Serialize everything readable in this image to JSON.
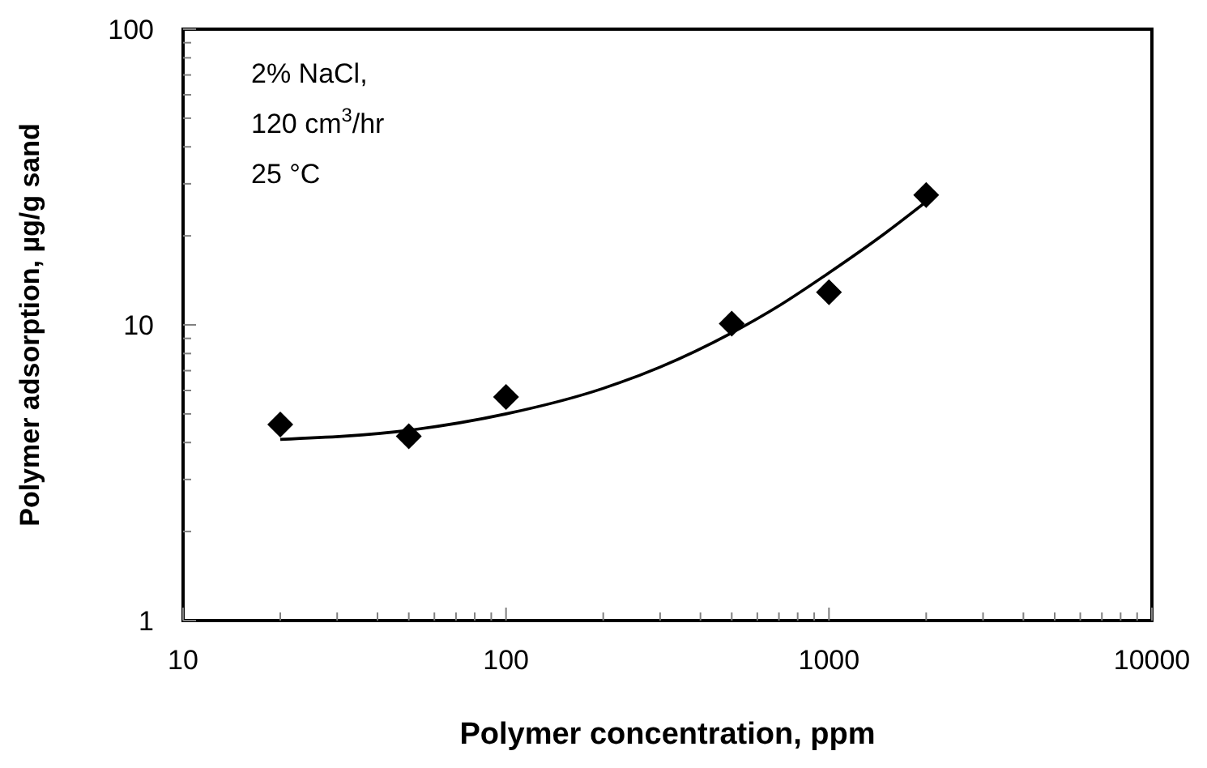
{
  "chart_data": {
    "type": "scatter",
    "xlabel": "Polymer concentration, ppm",
    "ylabel": "Polymer adsorption, µg/g sand",
    "log": "xy",
    "grid": false,
    "xlim": [
      10,
      10000
    ],
    "ylim": [
      1,
      100
    ],
    "xticks": [
      10,
      {
        "value": 20,
        "label": null
      },
      {
        "value": 30,
        "label": null
      },
      {
        "value": 40,
        "label": null
      },
      {
        "value": 50,
        "label": null
      },
      {
        "value": 60,
        "label": null
      },
      {
        "value": 70,
        "label": null
      },
      {
        "value": 80,
        "label": null
      },
      {
        "value": 90,
        "label": null
      },
      100,
      {
        "value": 200,
        "label": null
      },
      {
        "value": 300,
        "label": null
      },
      {
        "value": 400,
        "label": null
      },
      {
        "value": 500,
        "label": null
      },
      {
        "value": 600,
        "label": null
      },
      {
        "value": 700,
        "label": null
      },
      {
        "value": 800,
        "label": null
      },
      {
        "value": 900,
        "label": null
      },
      1000,
      {
        "value": 2000,
        "label": null
      },
      {
        "value": 3000,
        "label": null
      },
      {
        "value": 4000,
        "label": null
      },
      {
        "value": 5000,
        "label": null
      },
      {
        "value": 6000,
        "label": null
      },
      {
        "value": 7000,
        "label": null
      },
      {
        "value": 8000,
        "label": null
      },
      {
        "value": 9000,
        "label": null
      },
      10000
    ],
    "yticks": [
      1,
      {
        "value": 2,
        "label": null
      },
      {
        "value": 3,
        "label": null
      },
      {
        "value": 4,
        "label": null
      },
      {
        "value": 5,
        "label": null
      },
      {
        "value": 6,
        "label": null
      },
      {
        "value": 7,
        "label": null
      },
      {
        "value": 8,
        "label": null
      },
      {
        "value": 9,
        "label": null
      },
      10,
      {
        "value": 20,
        "label": null
      },
      {
        "value": 30,
        "label": null
      },
      {
        "value": 40,
        "label": null
      },
      {
        "value": 50,
        "label": null
      },
      {
        "value": 60,
        "label": null
      },
      {
        "value": 70,
        "label": null
      },
      {
        "value": 80,
        "label": null
      },
      {
        "value": 90,
        "label": null
      },
      100
    ],
    "annotations": [
      "2% NaCl,",
      "120 cm$^{3}$/hr",
      "25 °C"
    ],
    "series": [
      {
        "color": "#000000",
        "marker": "diamond",
        "x": [
          20,
          50,
          100,
          500,
          1000,
          2000
        ],
        "values": [
          4.6,
          4.2,
          5.7,
          10.1,
          12.9,
          27.5
        ]
      },
      {
        "type": "line",
        "color": "#000000",
        "line_style": "solid",
        "x": [
          20,
          50,
          100,
          200,
          300,
          500,
          700,
          1000,
          1500,
          2000
        ],
        "values": [
          4.1,
          4.4,
          5.0,
          6.1,
          7.2,
          9.4,
          11.6,
          15.0,
          20.5,
          26.1
        ]
      }
    ]
  }
}
